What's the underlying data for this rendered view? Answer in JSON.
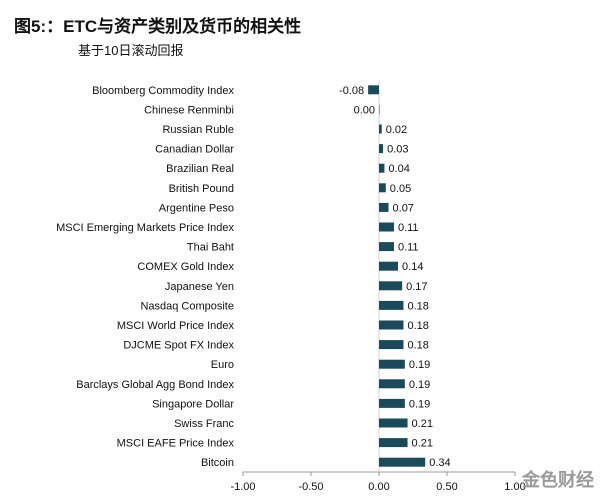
{
  "title": "图5:：ETC与资产类别及货币的相关性",
  "subtitle": "基于10日滚动回报",
  "watermark": "金色财经",
  "colors": {
    "bar": "#1b4a5a",
    "text": "#111111",
    "axis": "#999999"
  },
  "chart_data": {
    "type": "bar",
    "orientation": "horizontal",
    "categories": [
      "Bloomberg Commodity Index",
      "Chinese Renminbi",
      "Russian Ruble",
      "Canadian Dollar",
      "Brazilian Real",
      "British Pound",
      "Argentine Peso",
      "MSCI Emerging Markets Price Index",
      "Thai Baht",
      "COMEX Gold Index",
      "Japanese Yen",
      "Nasdaq Composite",
      "MSCI World Price Index",
      "DJCME Spot FX Index",
      "Euro",
      "Barclays Global Agg Bond Index",
      "Singapore Dollar",
      "Swiss Franc",
      "MSCI EAFE Price Index",
      "Bitcoin"
    ],
    "values": [
      -0.08,
      0.0,
      0.02,
      0.03,
      0.04,
      0.05,
      0.07,
      0.11,
      0.11,
      0.14,
      0.17,
      0.18,
      0.18,
      0.18,
      0.19,
      0.19,
      0.19,
      0.21,
      0.21,
      0.34
    ],
    "value_labels": [
      "-0.08",
      "0.00",
      "0.02",
      "0.03",
      "0.04",
      "0.05",
      "0.07",
      "0.11",
      "0.11",
      "0.14",
      "0.17",
      "0.18",
      "0.18",
      "0.18",
      "0.19",
      "0.19",
      "0.19",
      "0.21",
      "0.21",
      "0.34"
    ],
    "xlim": [
      -1.0,
      1.0
    ],
    "xticks": [
      -1.0,
      -0.5,
      0.0,
      0.5,
      1.0
    ],
    "xtick_labels": [
      "-1.00",
      "-0.50",
      "0.00",
      "0.50",
      "1.00"
    ],
    "grid": false,
    "legend": "none"
  }
}
